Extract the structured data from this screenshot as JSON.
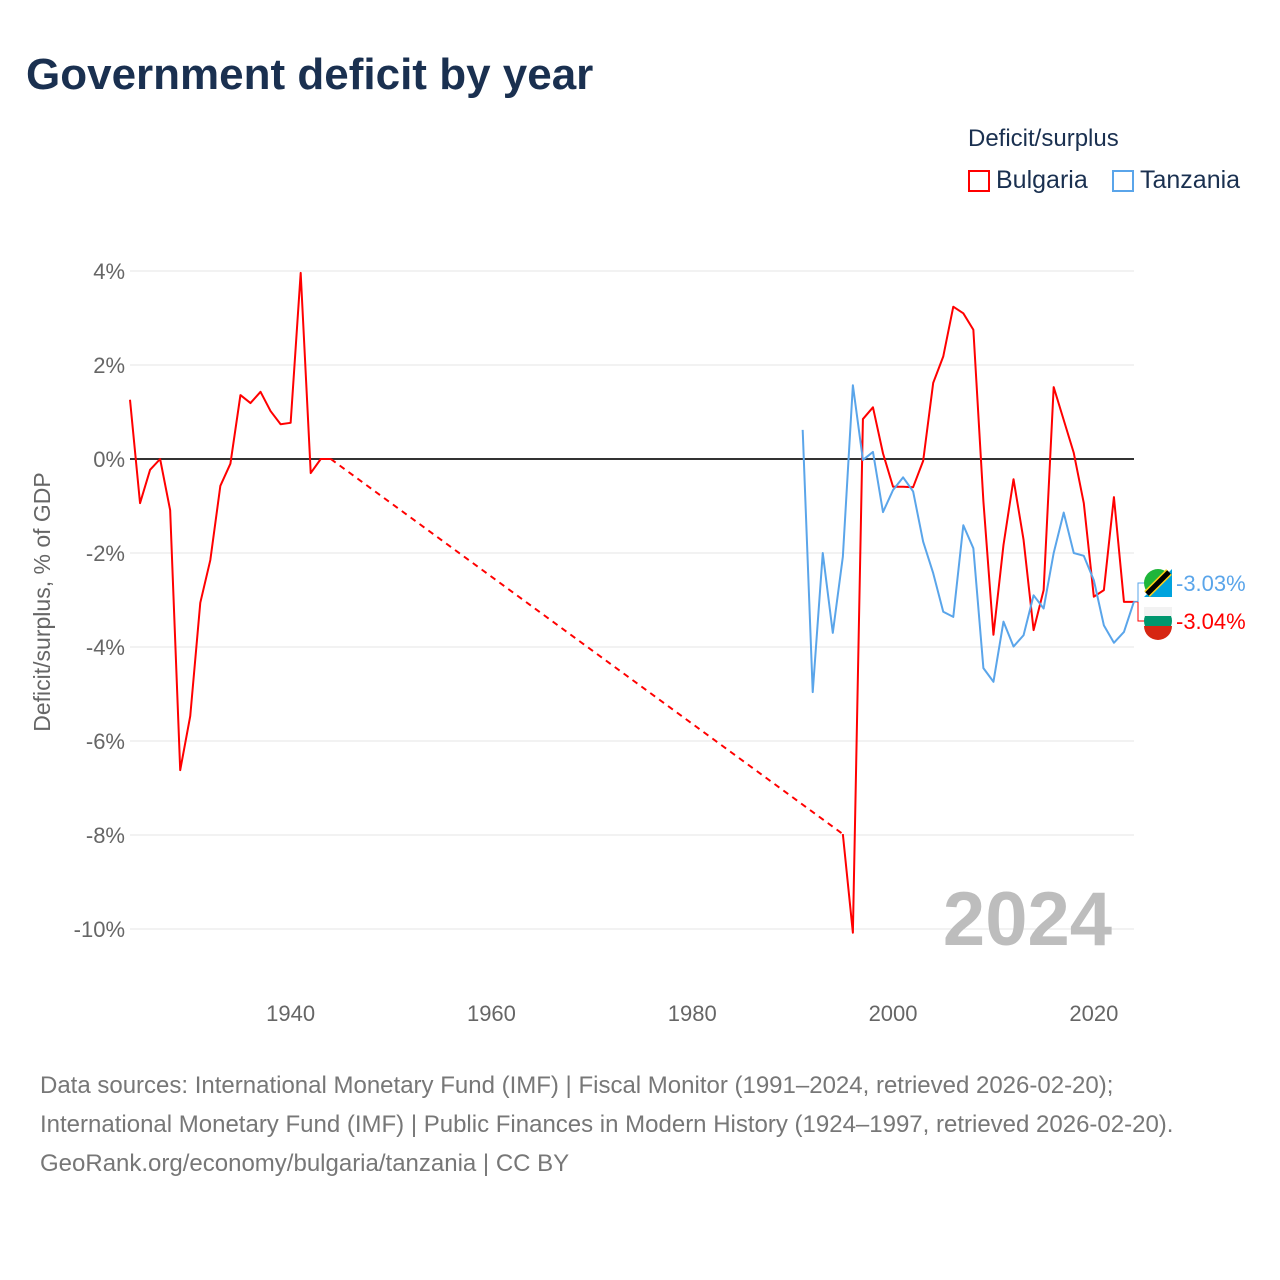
{
  "title": "Government deficit by year",
  "legend": {
    "title": "Deficit/surplus",
    "items": [
      {
        "name": "Bulgaria",
        "color": "#ff0000"
      },
      {
        "name": "Tanzania",
        "color": "#5aa5ea"
      }
    ]
  },
  "footer": {
    "sources": "Data sources: International Monetary Fund (IMF) | Fiscal Monitor (1991–2024, retrieved 2026-02-20); International Monetary Fund (IMF) | Public Finances in Modern History (1924–1997, retrieved 2026-02-20).",
    "credit": "GeoRank.org/economy/bulgaria/tanzania | CC BY"
  },
  "chart_data": {
    "type": "line",
    "title": "Government deficit by year",
    "ylabel": "Deficit/surplus, % of GDP",
    "xlim": [
      1924,
      2024
    ],
    "ylim": [
      -10.5,
      4.2
    ],
    "xticks": [
      1940,
      1960,
      1980,
      2000,
      2020
    ],
    "yticks": [
      {
        "v": 4,
        "label": "4%"
      },
      {
        "v": 2,
        "label": "2%"
      },
      {
        "v": 0,
        "label": "0%"
      },
      {
        "v": -2,
        "label": "-2%"
      },
      {
        "v": -4,
        "label": "-4%"
      },
      {
        "v": -6,
        "label": "-6%"
      },
      {
        "v": -8,
        "label": "-8%"
      },
      {
        "v": -10,
        "label": "-10%"
      }
    ],
    "year_label": "2024",
    "series": [
      {
        "name": "Bulgaria",
        "color": "#ff0000",
        "end_label": "-3.04%",
        "x": [
          1924,
          1925,
          1926,
          1927,
          1928,
          1929,
          1930,
          1931,
          1932,
          1933,
          1934,
          1935,
          1936,
          1937,
          1938,
          1939,
          1940,
          1941,
          1942,
          1943,
          1944,
          1995,
          1996,
          1997,
          1998,
          1999,
          2000,
          2001,
          2002,
          2003,
          2004,
          2005,
          2006,
          2007,
          2008,
          2009,
          2010,
          2011,
          2012,
          2013,
          2014,
          2015,
          2016,
          2017,
          2018,
          2019,
          2020,
          2021,
          2022,
          2023,
          2024
        ],
        "values": [
          1.26,
          -0.94,
          -0.23,
          0,
          -1.09,
          -6.62,
          -5.47,
          -3.06,
          -2.15,
          -0.57,
          -0.1,
          1.36,
          1.19,
          1.43,
          1.02,
          0.74,
          0.77,
          3.96,
          -0.3,
          0,
          0,
          -7.98,
          -10.08,
          0.85,
          1.1,
          0.12,
          -0.59,
          -0.59,
          -0.6,
          -0.04,
          1.62,
          2.18,
          3.24,
          3.1,
          2.75,
          -0.9,
          -3.74,
          -1.83,
          -0.43,
          -1.72,
          -3.64,
          -2.79,
          1.53,
          0.83,
          0.13,
          -0.94,
          -2.93,
          -2.79,
          -0.81,
          -3.04,
          -3.04
        ],
        "gap_after": 1944
      },
      {
        "name": "Tanzania",
        "color": "#5aa5ea",
        "end_label": "-3.03%",
        "x": [
          1991,
          1992,
          1993,
          1994,
          1995,
          1996,
          1997,
          1998,
          1999,
          2000,
          2001,
          2002,
          2003,
          2004,
          2005,
          2006,
          2007,
          2008,
          2009,
          2010,
          2011,
          2012,
          2013,
          2014,
          2015,
          2016,
          2017,
          2018,
          2019,
          2020,
          2021,
          2022,
          2023,
          2024
        ],
        "values": [
          0.62,
          -4.96,
          -2.0,
          -3.7,
          -2.08,
          1.57,
          -0.02,
          0.15,
          -1.13,
          -0.66,
          -0.39,
          -0.69,
          -1.76,
          -2.43,
          -3.25,
          -3.36,
          -1.41,
          -1.9,
          -4.45,
          -4.74,
          -3.46,
          -3.99,
          -3.75,
          -2.9,
          -3.18,
          -2.0,
          -1.14,
          -2.0,
          -2.06,
          -2.58,
          -3.54,
          -3.91,
          -3.68,
          -3.03
        ]
      }
    ]
  }
}
